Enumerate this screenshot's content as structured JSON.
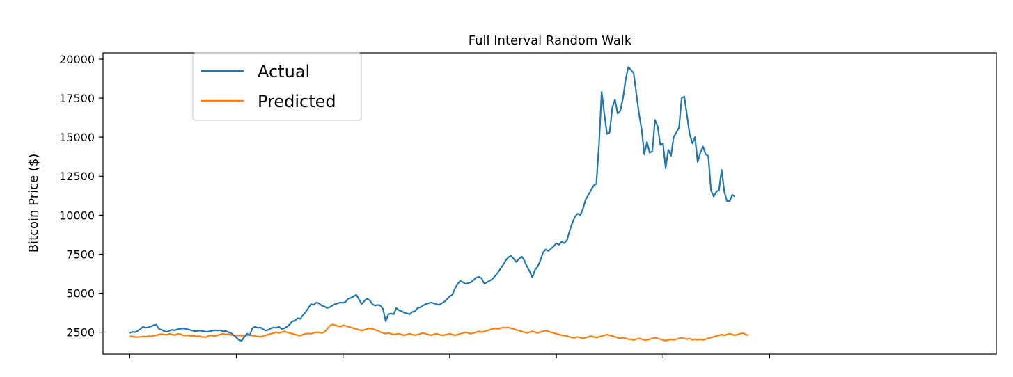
{
  "chart_data": {
    "type": "line",
    "title": "Full Interval Random Walk",
    "xlabel": "",
    "ylabel": "Bitcoin Price ($)",
    "ylim": [
      1100,
      20400
    ],
    "yticks": [
      2500,
      5000,
      7500,
      10000,
      12500,
      15000,
      17500,
      20000
    ],
    "ytick_labels": [
      "2500",
      "5000",
      "7500",
      "10000",
      "12500",
      "15000",
      "17500",
      "20000"
    ],
    "xlim": [
      -10,
      325
    ],
    "xticks": [
      0,
      40,
      80,
      120,
      160,
      200,
      240
    ],
    "xtick_labels": [
      "",
      "",
      "",
      "",
      "",
      "",
      ""
    ],
    "grid": false,
    "legend_position": "upper-left",
    "colors": {
      "actual": "#1f77b4",
      "predicted": "#ff7f0e"
    },
    "series": [
      {
        "name": "Actual",
        "values": [
          2450,
          2520,
          2500,
          2580,
          2700,
          2850,
          2780,
          2820,
          2870,
          2950,
          2980,
          2700,
          2650,
          2560,
          2520,
          2600,
          2650,
          2620,
          2700,
          2710,
          2750,
          2700,
          2680,
          2620,
          2580,
          2560,
          2600,
          2580,
          2550,
          2520,
          2560,
          2600,
          2620,
          2610,
          2620,
          2550,
          2580,
          2500,
          2450,
          2300,
          2150,
          2000,
          1950,
          2200,
          2400,
          2300,
          2750,
          2850,
          2780,
          2800,
          2700,
          2600,
          2650,
          2750,
          2800,
          2780,
          2850,
          2700,
          2750,
          2850,
          3000,
          3200,
          3250,
          3400,
          3350,
          3600,
          3800,
          4050,
          4300,
          4250,
          4400,
          4350,
          4200,
          4150,
          4050,
          4100,
          4200,
          4300,
          4350,
          4400,
          4380,
          4450,
          4650,
          4700,
          4800,
          4900,
          4600,
          4300,
          4500,
          4650,
          4550,
          4300,
          4200,
          4250,
          4200,
          4000,
          3200,
          3650,
          3700,
          3650,
          4050,
          3900,
          3850,
          3750,
          3700,
          3650,
          3800,
          3850,
          4050,
          4100,
          4200,
          4300,
          4350,
          4400,
          4350,
          4300,
          4250,
          4350,
          4450,
          4600,
          4800,
          4900,
          5300,
          5600,
          5800,
          5700,
          5600,
          5650,
          5700,
          5850,
          6000,
          6050,
          5950,
          5600,
          5700,
          5800,
          5900,
          6100,
          6300,
          6550,
          6800,
          7100,
          7300,
          7400,
          7200,
          7000,
          7200,
          7350,
          7100,
          6700,
          6400,
          6000,
          6500,
          6700,
          7100,
          7600,
          7800,
          7700,
          7850,
          8000,
          8200,
          8100,
          8300,
          8200,
          8400,
          9000,
          9500,
          9900,
          10100,
          10000,
          10400,
          11000,
          11300,
          11600,
          11900,
          12000,
          14500,
          17900,
          16500,
          15200,
          15300,
          16900,
          17400,
          16500,
          16700,
          17500,
          18700,
          19500,
          19300,
          19100,
          17800,
          16500,
          15500,
          13900,
          14700,
          14000,
          14100,
          16100,
          15700,
          14500,
          14600,
          13000,
          14200,
          13800,
          15000,
          15300,
          15600,
          17500,
          17600,
          16400,
          15200,
          14600,
          15000,
          13400,
          14000,
          14400,
          13900,
          13800,
          11600,
          11200,
          11500,
          11600,
          12900,
          11500,
          10900,
          10900,
          11300,
          11200
        ]
      },
      {
        "name": "Predicted",
        "values": [
          2250,
          2220,
          2200,
          2180,
          2200,
          2230,
          2210,
          2250,
          2230,
          2280,
          2300,
          2350,
          2380,
          2350,
          2330,
          2400,
          2350,
          2300,
          2400,
          2380,
          2300,
          2280,
          2300,
          2250,
          2280,
          2230,
          2250,
          2200,
          2180,
          2200,
          2300,
          2280,
          2250,
          2300,
          2350,
          2400,
          2350,
          2380,
          2320,
          2300,
          2280,
          2300,
          2270,
          2250,
          2300,
          2320,
          2280,
          2250,
          2230,
          2200,
          2250,
          2300,
          2350,
          2400,
          2450,
          2500,
          2450,
          2500,
          2550,
          2500,
          2450,
          2400,
          2350,
          2300,
          2280,
          2350,
          2400,
          2420,
          2400,
          2450,
          2500,
          2480,
          2450,
          2500,
          2700,
          2900,
          3000,
          2950,
          2900,
          2850,
          2950,
          2900,
          2850,
          2800,
          2750,
          2700,
          2650,
          2600,
          2650,
          2700,
          2750,
          2700,
          2650,
          2600,
          2500,
          2450,
          2400,
          2450,
          2400,
          2350,
          2380,
          2400,
          2350,
          2300,
          2350,
          2400,
          2350,
          2300,
          2350,
          2400,
          2450,
          2400,
          2350,
          2300,
          2350,
          2400,
          2350,
          2300,
          2320,
          2350,
          2400,
          2350,
          2300,
          2350,
          2400,
          2450,
          2500,
          2450,
          2400,
          2450,
          2500,
          2550,
          2500,
          2550,
          2600,
          2650,
          2700,
          2750,
          2700,
          2750,
          2800,
          2780,
          2800,
          2750,
          2700,
          2650,
          2600,
          2550,
          2500,
          2450,
          2500,
          2550,
          2500,
          2450,
          2500,
          2550,
          2600,
          2550,
          2500,
          2450,
          2400,
          2350,
          2300,
          2280,
          2250,
          2200,
          2150,
          2150,
          2200,
          2150,
          2100,
          2150,
          2200,
          2250,
          2200,
          2150,
          2200,
          2250,
          2300,
          2350,
          2300,
          2250,
          2200,
          2150,
          2100,
          2150,
          2100,
          2050,
          2050,
          2000,
          2050,
          2100,
          2050,
          2000,
          2000,
          2050,
          2100,
          2150,
          2100,
          2050,
          2000,
          1950,
          2000,
          2050,
          2000,
          2050,
          2100,
          2150,
          2100,
          2050,
          2100,
          2000,
          2050,
          2000,
          2050,
          2000,
          2050,
          2100,
          2150,
          2200,
          2250,
          2300,
          2350,
          2300,
          2350,
          2400,
          2350,
          2300,
          2350,
          2400,
          2450,
          2350,
          2300
        ]
      }
    ]
  }
}
